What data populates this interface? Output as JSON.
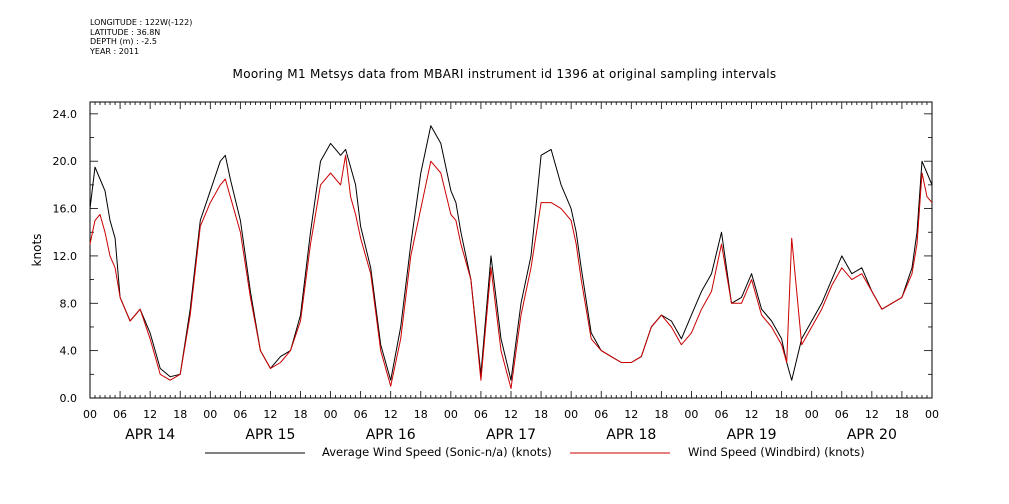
{
  "meta": {
    "longitude": "LONGITUDE : 122W(-122)",
    "latitude": "LATITUDE : 36.8N",
    "depth": "DEPTH (m) : -2.5",
    "year": "YEAR : 2011"
  },
  "chart_data": {
    "type": "line",
    "title": "Mooring M1 Metsys data from MBARI instrument id 1396 at original sampling intervals",
    "ylabel": "knots",
    "xlabel": "",
    "ylim": [
      0,
      25
    ],
    "xlim_hours": [
      0,
      168
    ],
    "yticks": [
      "0.0",
      "4.0",
      "8.0",
      "12.0",
      "16.0",
      "20.0",
      "24.0"
    ],
    "xtick_hour_labels": [
      "00",
      "06",
      "12",
      "18",
      "00",
      "06",
      "12",
      "18",
      "00",
      "06",
      "12",
      "18",
      "00",
      "06",
      "12",
      "18",
      "00",
      "06",
      "12",
      "18",
      "00",
      "06",
      "12",
      "18",
      "00",
      "06",
      "12",
      "18",
      "00"
    ],
    "day_labels": [
      "APR 14",
      "APR 15",
      "APR 16",
      "APR 17",
      "APR 18",
      "APR 19",
      "APR 20"
    ],
    "grid": false,
    "legend_position": "bottom",
    "series": [
      {
        "name": "Average Wind Speed (Sonic-n/a) (knots)",
        "color": "#000000",
        "x_hours": [
          0,
          1,
          2,
          3,
          4,
          5,
          6,
          8,
          10,
          12,
          14,
          16,
          18,
          20,
          22,
          24,
          26,
          27,
          28,
          30,
          32,
          34,
          36,
          38,
          40,
          42,
          44,
          46,
          48,
          50,
          51,
          52,
          53,
          54,
          56,
          58,
          60,
          62,
          64,
          66,
          68,
          70,
          72,
          73,
          74,
          76,
          78,
          80,
          82,
          84,
          86,
          88,
          90,
          92,
          94,
          96,
          97,
          98,
          100,
          102,
          104,
          106,
          108,
          110,
          112,
          114,
          116,
          118,
          120,
          122,
          124,
          126,
          128,
          130,
          132,
          134,
          136,
          138,
          139,
          140,
          142,
          144,
          146,
          148,
          150,
          152,
          154,
          156,
          158,
          160,
          162,
          164,
          165,
          166,
          167,
          168
        ],
        "values": [
          16,
          19.5,
          18.5,
          17.5,
          15,
          13.5,
          8.5,
          6.5,
          7.5,
          5.5,
          2.5,
          1.8,
          2,
          7.5,
          15,
          17.5,
          20,
          20.5,
          18.5,
          15,
          9,
          4,
          2.5,
          3.5,
          4,
          7,
          14,
          20,
          21.5,
          20.5,
          21,
          19.5,
          18,
          14.5,
          11,
          4.5,
          1.5,
          6,
          13,
          19,
          23,
          21.5,
          17.5,
          16.5,
          14,
          10,
          2,
          12,
          5,
          1.5,
          8,
          12,
          20.5,
          21,
          18,
          16,
          14,
          11,
          5.5,
          4,
          3.5,
          3,
          3,
          3.5,
          6,
          7,
          6.5,
          5,
          7,
          9,
          10.5,
          14,
          8,
          8.5,
          10.5,
          7.5,
          6.5,
          5,
          3,
          1.5,
          5,
          6.5,
          8,
          10,
          12,
          10.5,
          11,
          9,
          7.5,
          8,
          8.5,
          11,
          14,
          20,
          19,
          18
        ]
      },
      {
        "name": "Wind Speed (Windbird) (knots)",
        "color": "#cc0000",
        "x_hours": [
          0,
          1,
          2,
          3,
          4,
          5,
          6,
          8,
          10,
          12,
          14,
          16,
          18,
          20,
          22,
          24,
          26,
          27,
          28,
          30,
          32,
          34,
          36,
          38,
          40,
          42,
          44,
          46,
          48,
          50,
          51,
          52,
          53,
          54,
          56,
          58,
          60,
          62,
          64,
          66,
          68,
          70,
          72,
          73,
          74,
          76,
          78,
          80,
          82,
          84,
          86,
          88,
          90,
          92,
          94,
          96,
          97,
          98,
          100,
          102,
          104,
          106,
          108,
          110,
          112,
          114,
          116,
          118,
          120,
          122,
          124,
          126,
          128,
          130,
          132,
          134,
          136,
          138,
          139,
          140,
          142,
          144,
          146,
          148,
          150,
          152,
          154,
          156,
          158,
          160,
          162,
          164,
          165,
          166,
          167,
          168
        ],
        "values": [
          13,
          15,
          15.5,
          14,
          12,
          11,
          8.5,
          6.5,
          7.5,
          5,
          2,
          1.5,
          2,
          7,
          14.5,
          16.5,
          18,
          18.5,
          17,
          14,
          8.5,
          4,
          2.5,
          3,
          4,
          6.5,
          13,
          18,
          19,
          18,
          20.5,
          17,
          15.5,
          13.5,
          10.5,
          4,
          1,
          5,
          12,
          16,
          20,
          19,
          15.5,
          15,
          13,
          10,
          1.5,
          11,
          4,
          0.8,
          7,
          11,
          16.5,
          16.5,
          16,
          15,
          13,
          10,
          5,
          4,
          3.5,
          3,
          3,
          3.5,
          6,
          7,
          6,
          4.5,
          5.5,
          7.5,
          9,
          13,
          8,
          8,
          10,
          7,
          6,
          4.5,
          3,
          13.5,
          4.5,
          6,
          7.5,
          9.5,
          11,
          10,
          10.5,
          9,
          7.5,
          8,
          8.5,
          10.5,
          13,
          19,
          17,
          16.5
        ]
      }
    ]
  }
}
